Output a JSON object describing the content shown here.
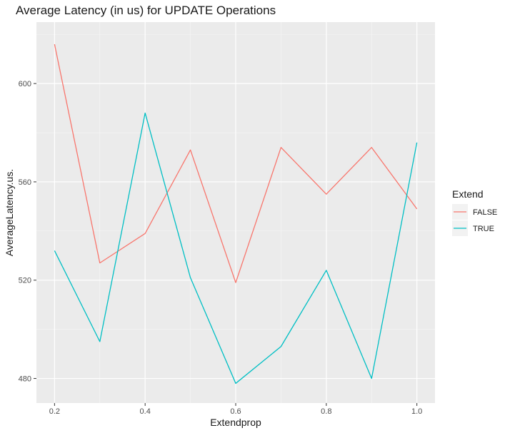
{
  "chart_data": {
    "type": "line",
    "title": "Average Latency (in us) for UPDATE Operations",
    "xlabel": "Extendprop",
    "ylabel": "AverageLatency.us.",
    "x": [
      0.2,
      0.3,
      0.4,
      0.5,
      0.6,
      0.7,
      0.8,
      0.9,
      1.0
    ],
    "xticks": [
      "0.2",
      "0.4",
      "0.6",
      "0.8",
      "1.0"
    ],
    "yticks": [
      "480",
      "520",
      "560",
      "600"
    ],
    "xlim": [
      0.16,
      1.04
    ],
    "ylim": [
      470,
      625
    ],
    "grid": true,
    "legend": {
      "title": "Extend",
      "position": "right"
    },
    "series": [
      {
        "name": "FALSE",
        "color": "#F8766D",
        "values": [
          616,
          527,
          539,
          573,
          519,
          574,
          555,
          574,
          549
        ]
      },
      {
        "name": "TRUE",
        "color": "#00BFC4",
        "values": [
          532,
          495,
          588,
          521,
          478,
          493,
          524,
          480,
          576
        ]
      }
    ]
  }
}
